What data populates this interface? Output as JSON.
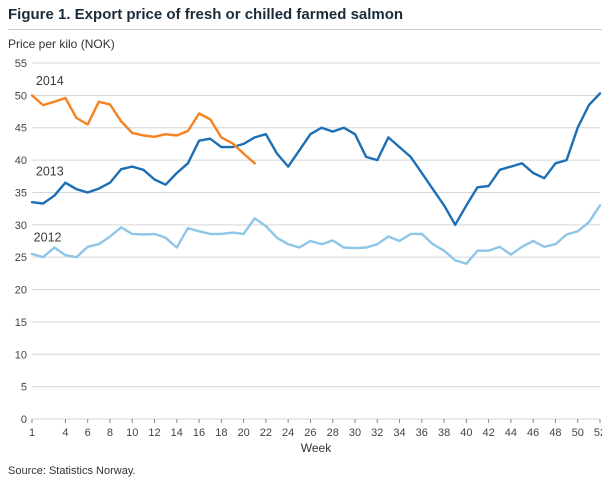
{
  "figure": {
    "title": "Figure 1. Export price of fresh or chilled farmed salmon",
    "subtitle": "Price per kilo (NOK)",
    "source": "Source: Statistics Norway."
  },
  "chart_data": {
    "type": "line",
    "title": "Figure 1. Export price of fresh or chilled farmed salmon",
    "ylabel": "Price per kilo (NOK)",
    "xlabel": "Week",
    "xlim": [
      1,
      52
    ],
    "ylim": [
      0,
      55
    ],
    "ytick_step": 5,
    "xticks": [
      1,
      4,
      6,
      8,
      10,
      12,
      14,
      16,
      18,
      20,
      22,
      24,
      26,
      28,
      30,
      32,
      34,
      36,
      38,
      40,
      42,
      44,
      46,
      48,
      50,
      52
    ],
    "grid": true,
    "grid_color": "#d6d6d6",
    "legend_position": "inline-labels",
    "series": [
      {
        "name": "2012",
        "color": "#8ec6e8",
        "start_week": 1,
        "values": [
          25.5,
          25.0,
          26.5,
          25.3,
          25.0,
          26.6,
          27.0,
          28.2,
          29.6,
          28.6,
          28.5,
          28.6,
          28.0,
          26.5,
          29.5,
          29.0,
          28.6,
          28.6,
          28.8,
          28.6,
          31.0,
          29.8,
          28.0,
          27.0,
          26.5,
          27.5,
          27.0,
          27.6,
          26.5,
          26.4,
          26.5,
          27.0,
          28.2,
          27.5,
          28.6,
          28.6,
          27.0,
          26.0,
          24.5,
          24.0,
          26.0,
          26.0,
          26.6,
          25.4,
          26.6,
          27.5,
          26.6,
          27.0,
          28.5,
          29.0,
          30.4,
          33.0
        ]
      },
      {
        "name": "2013",
        "color": "#1c6fb5",
        "start_week": 1,
        "values": [
          33.5,
          33.3,
          34.5,
          36.5,
          35.5,
          35.0,
          35.6,
          36.5,
          38.6,
          39.0,
          38.5,
          37.0,
          36.2,
          38.0,
          39.5,
          43.0,
          43.3,
          42.0,
          42.0,
          42.5,
          43.5,
          44.0,
          41.0,
          39.0,
          41.5,
          44.0,
          45.0,
          44.4,
          45.0,
          44.0,
          40.5,
          40.0,
          43.5,
          42.0,
          40.5,
          38.0,
          35.5,
          33.0,
          30.0,
          33.0,
          35.8,
          36.0,
          38.5,
          39.0,
          39.5,
          38.0,
          37.2,
          39.5,
          40.0,
          45.0,
          48.5,
          50.3
        ]
      },
      {
        "name": "2014",
        "color": "#f5821f",
        "start_week": 1,
        "values": [
          50.0,
          48.5,
          49.0,
          49.6,
          46.5,
          45.5,
          49.0,
          48.6,
          46.0,
          44.2,
          43.8,
          43.6,
          44.0,
          43.8,
          44.5,
          47.2,
          46.3,
          43.5,
          42.6,
          41.0,
          39.5
        ]
      }
    ],
    "annotations": [
      {
        "text": "2014",
        "week": 2.6,
        "value": 51.6
      },
      {
        "text": "2013",
        "week": 2.6,
        "value": 37.6
      },
      {
        "text": "2012",
        "week": 2.4,
        "value": 27.4
      }
    ]
  }
}
